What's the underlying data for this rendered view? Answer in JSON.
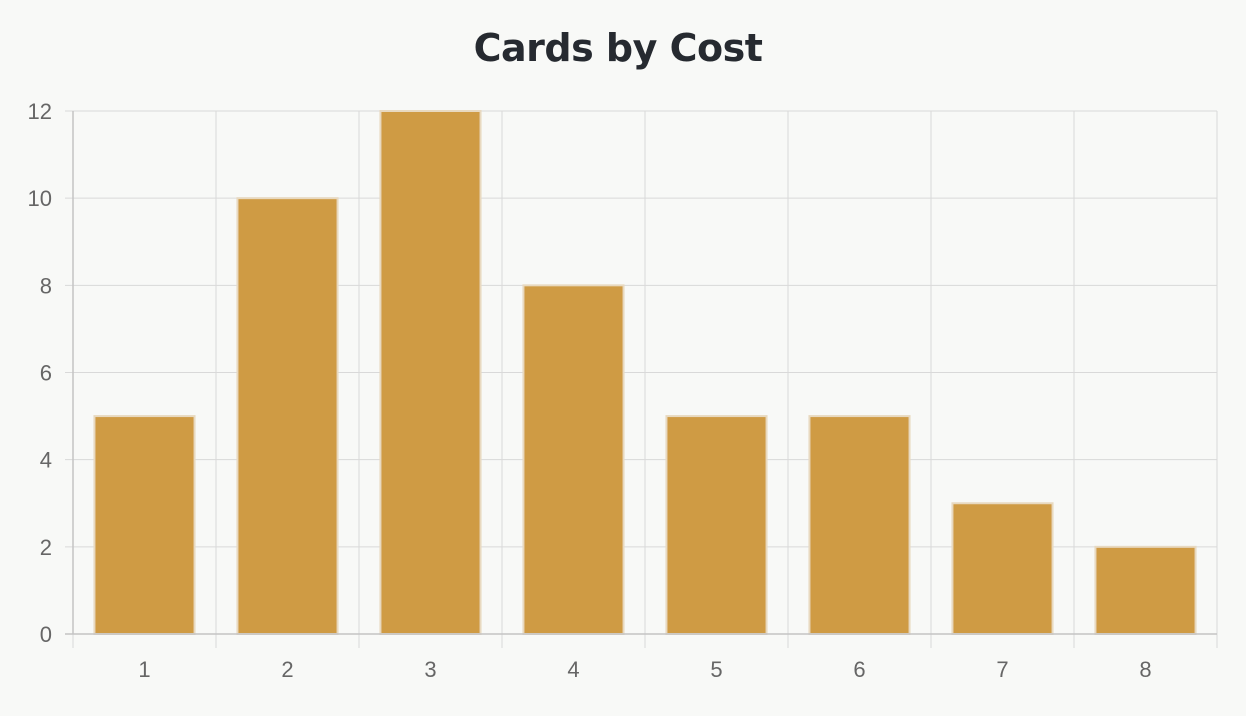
{
  "chart_data": {
    "type": "bar",
    "title": "Cards by Cost",
    "xlabel": "",
    "ylabel": "",
    "categories": [
      "1",
      "2",
      "3",
      "4",
      "5",
      "6",
      "7",
      "8"
    ],
    "values": [
      5,
      10,
      12,
      8,
      5,
      5,
      3,
      2
    ],
    "ylim": [
      0,
      12
    ],
    "yticks": [
      "0",
      "2",
      "4",
      "6",
      "8",
      "10",
      "12"
    ],
    "grid": true,
    "legend": "none",
    "colors": {
      "bar_fill": "#cf9b44",
      "bar_border": "#e8d9c0",
      "grid": "#d9d9d9",
      "axis": "#c4c4c4",
      "tick_text": "#666666",
      "title": "#262a30",
      "background": "#f8f9f7"
    }
  }
}
